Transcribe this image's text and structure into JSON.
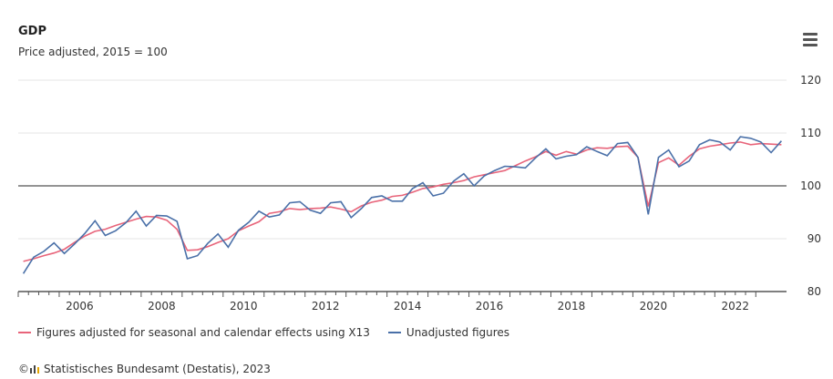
{
  "header": {
    "title": "GDP",
    "subtitle": "Price adjusted, 2015 = 100",
    "menu_icon": "hamburger-menu-icon"
  },
  "legend": {
    "seasonal_label": "Figures adjusted for seasonal and calendar effects using X13",
    "unadjusted_label": "Unadjusted figures"
  },
  "credit": {
    "copyright_symbol": "©",
    "source": "Statistisches Bundesamt (Destatis), 2023"
  },
  "chart_data": {
    "type": "line",
    "title": "GDP",
    "subtitle": "Price adjusted, 2015 = 100",
    "xlabel": "",
    "ylabel": "",
    "xlim": [
      "2005 Q1",
      "2023 Q3"
    ],
    "ylim": [
      80,
      120
    ],
    "y_ticks": [
      80,
      90,
      100,
      110,
      120
    ],
    "x_ticks": [
      2006,
      2008,
      2010,
      2012,
      2014,
      2016,
      2018,
      2020,
      2022
    ],
    "reference_line": 100,
    "grid": true,
    "legend_position": "bottom-left",
    "colors": {
      "seasonal": "#e8647a",
      "unadjusted": "#4a70a8",
      "reference": "#555555",
      "grid": "#e6e6e6"
    },
    "x": [
      "2005 Q1",
      "2005 Q2",
      "2005 Q3",
      "2005 Q4",
      "2006 Q1",
      "2006 Q2",
      "2006 Q3",
      "2006 Q4",
      "2007 Q1",
      "2007 Q2",
      "2007 Q3",
      "2007 Q4",
      "2008 Q1",
      "2008 Q2",
      "2008 Q3",
      "2008 Q4",
      "2009 Q1",
      "2009 Q2",
      "2009 Q3",
      "2009 Q4",
      "2010 Q1",
      "2010 Q2",
      "2010 Q3",
      "2010 Q4",
      "2011 Q1",
      "2011 Q2",
      "2011 Q3",
      "2011 Q4",
      "2012 Q1",
      "2012 Q2",
      "2012 Q3",
      "2012 Q4",
      "2013 Q1",
      "2013 Q2",
      "2013 Q3",
      "2013 Q4",
      "2014 Q1",
      "2014 Q2",
      "2014 Q3",
      "2014 Q4",
      "2015 Q1",
      "2015 Q2",
      "2015 Q3",
      "2015 Q4",
      "2016 Q1",
      "2016 Q2",
      "2016 Q3",
      "2016 Q4",
      "2017 Q1",
      "2017 Q2",
      "2017 Q3",
      "2017 Q4",
      "2018 Q1",
      "2018 Q2",
      "2018 Q3",
      "2018 Q4",
      "2019 Q1",
      "2019 Q2",
      "2019 Q3",
      "2019 Q4",
      "2020 Q1",
      "2020 Q2",
      "2020 Q3",
      "2020 Q4",
      "2021 Q1",
      "2021 Q2",
      "2021 Q3",
      "2021 Q4",
      "2022 Q1",
      "2022 Q2",
      "2022 Q3",
      "2022 Q4",
      "2023 Q1",
      "2023 Q2",
      "2023 Q3"
    ],
    "series": [
      {
        "name": "Figures adjusted for seasonal and calendar effects using X13",
        "values": [
          85.7,
          86.2,
          86.8,
          87.3,
          88.0,
          89.3,
          90.5,
          91.4,
          91.8,
          92.5,
          93.1,
          93.7,
          94.2,
          94.1,
          93.5,
          91.8,
          87.8,
          87.9,
          88.5,
          89.3,
          90.0,
          91.5,
          92.4,
          93.2,
          94.8,
          95.1,
          95.7,
          95.5,
          95.7,
          95.8,
          96.0,
          95.6,
          95.1,
          96.2,
          96.9,
          97.3,
          98.0,
          98.2,
          98.8,
          99.5,
          99.8,
          100.3,
          100.6,
          101.0,
          101.7,
          102.1,
          102.5,
          102.9,
          103.8,
          104.7,
          105.5,
          106.5,
          105.8,
          106.5,
          106.0,
          106.8,
          107.2,
          107.1,
          107.4,
          107.5,
          105.4,
          96.1,
          104.4,
          105.3,
          103.9,
          105.6,
          107.0,
          107.5,
          107.8,
          108.1,
          108.3,
          107.8,
          108.0,
          107.9,
          107.8
        ]
      },
      {
        "name": "Unadjusted figures",
        "values": [
          83.4,
          86.5,
          87.6,
          89.2,
          87.2,
          89.0,
          91.0,
          93.4,
          90.6,
          91.5,
          93.0,
          95.2,
          92.4,
          94.4,
          94.3,
          93.3,
          86.2,
          86.8,
          89.1,
          90.9,
          88.4,
          91.6,
          93.1,
          95.2,
          94.1,
          94.5,
          96.8,
          97.0,
          95.4,
          94.8,
          96.8,
          97.0,
          94.0,
          95.7,
          97.8,
          98.1,
          97.1,
          97.1,
          99.5,
          100.6,
          98.1,
          98.6,
          100.9,
          102.3,
          100.0,
          101.9,
          102.9,
          103.7,
          103.6,
          103.4,
          105.3,
          107.0,
          105.1,
          105.6,
          105.9,
          107.4,
          106.5,
          105.7,
          108.0,
          108.2,
          105.4,
          94.6,
          105.4,
          106.8,
          103.6,
          104.7,
          107.8,
          108.7,
          108.3,
          106.8,
          109.3,
          109.0,
          108.3,
          106.3,
          108.5
        ]
      }
    ]
  }
}
